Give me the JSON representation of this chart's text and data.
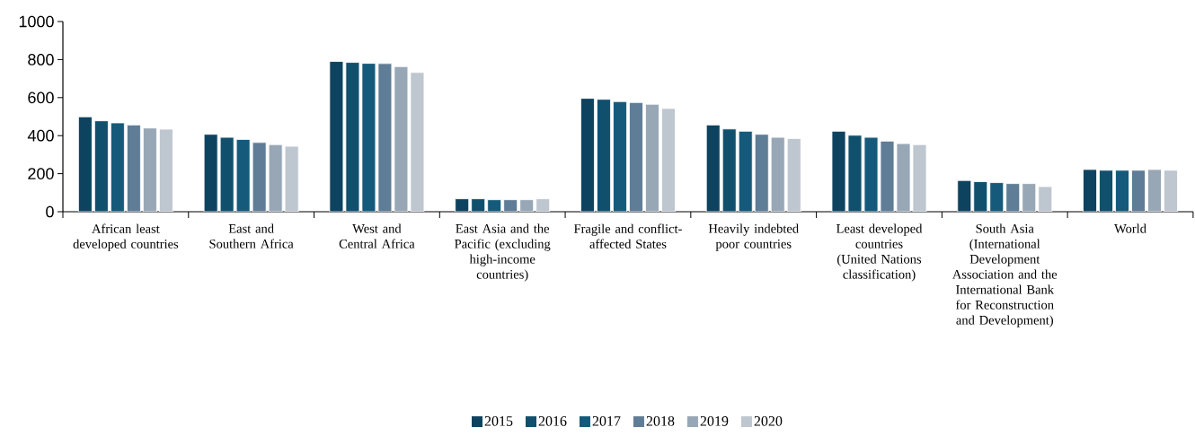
{
  "chart_data": {
    "type": "bar",
    "categories": [
      "African least developed countries",
      "East and Southern Africa",
      "West and Central Africa",
      "East Asia and the Pacific (excluding high-income countries)",
      "Fragile and conflict-affected States",
      "Heavily indebted poor countries",
      "Least developed countries (United Nations classification)",
      "South Asia (International Development Association and the International Bank for Reconstruction and Development)",
      "World"
    ],
    "series": [
      {
        "name": "2015",
        "color": "#0e4360",
        "values": [
          499,
          407,
          790,
          68,
          596,
          456,
          423,
          164,
          222
        ]
      },
      {
        "name": "2016",
        "color": "#11506c",
        "values": [
          478,
          391,
          785,
          68,
          591,
          435,
          402,
          158,
          218
        ]
      },
      {
        "name": "2017",
        "color": "#155a7a",
        "values": [
          467,
          380,
          780,
          63,
          579,
          423,
          391,
          153,
          218
        ]
      },
      {
        "name": "2018",
        "color": "#5f7d96",
        "values": [
          456,
          364,
          779,
          63,
          574,
          407,
          371,
          148,
          218
        ]
      },
      {
        "name": "2019",
        "color": "#98a7b6",
        "values": [
          440,
          353,
          763,
          63,
          565,
          391,
          358,
          148,
          222
        ]
      },
      {
        "name": "2020",
        "color": "#bec6cf",
        "values": [
          434,
          344,
          732,
          68,
          543,
          385,
          353,
          132,
          218
        ]
      }
    ],
    "ylim": [
      0,
      1000
    ],
    "yticks": [
      0,
      200,
      400,
      600,
      800,
      1000
    ],
    "legend": "bottom"
  }
}
